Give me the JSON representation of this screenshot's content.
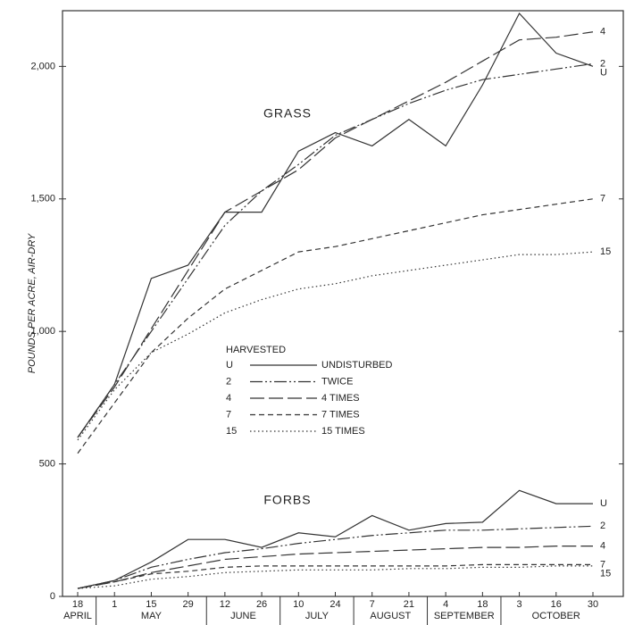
{
  "chart_data": {
    "type": "line",
    "y_label": "POUNDS PER ACRE, AIR-DRY",
    "categories": [
      "18",
      "1",
      "15",
      "29",
      "12",
      "26",
      "10",
      "24",
      "7",
      "21",
      "4",
      "18",
      "3",
      "16",
      "30"
    ],
    "months": [
      "APRIL",
      "MAY",
      "MAY",
      "MAY",
      "JUNE",
      "JUNE",
      "JULY",
      "JULY",
      "AUGUST",
      "AUGUST",
      "SEPTEMBER",
      "SEPTEMBER",
      "OCTOBER",
      "OCTOBER",
      "OCTOBER"
    ],
    "ylim": [
      0,
      2200
    ],
    "yticks": [
      0,
      500,
      {
        "value": 1000,
        "label": "1,000"
      },
      {
        "value": 1500,
        "label": "1,500"
      },
      {
        "value": 2000,
        "label": "2,000"
      }
    ],
    "color": "#333333",
    "legend": {
      "title": "HARVESTED",
      "entries": [
        {
          "code": "U",
          "name": "UNDISTURBED",
          "dash": "none"
        },
        {
          "code": "2",
          "name": "TWICE",
          "dash": "14,3,2,3,2,3"
        },
        {
          "code": "4",
          "name": "4 TIMES",
          "dash": "16,5"
        },
        {
          "code": "7",
          "name": "7 TIMES",
          "dash": "6,4"
        },
        {
          "code": "15",
          "name": "15 TIMES",
          "dash": "1.5,3"
        }
      ]
    },
    "groups": [
      {
        "label": "GRASS",
        "series": [
          {
            "code": "U",
            "values": [
              600,
              800,
              1200,
              1250,
              1450,
              1450,
              1680,
              1750,
              1700,
              1800,
              1700,
              1930,
              2200,
              2050,
              2000
            ]
          },
          {
            "code": "2",
            "values": [
              600,
              800,
              1000,
              1200,
              1400,
              1530,
              1630,
              1740,
              1800,
              1860,
              1910,
              1950,
              1970,
              1990,
              2010
            ]
          },
          {
            "code": "4",
            "values": [
              600,
              790,
              1010,
              1230,
              1450,
              1530,
              1610,
              1730,
              1800,
              1870,
              1940,
              2020,
              2100,
              2110,
              2130
            ]
          },
          {
            "code": "7",
            "values": [
              540,
              730,
              920,
              1050,
              1160,
              1230,
              1300,
              1320,
              1350,
              1380,
              1410,
              1440,
              1460,
              1480,
              1500
            ]
          },
          {
            "code": "15",
            "values": [
              590,
              780,
              920,
              990,
              1070,
              1120,
              1160,
              1180,
              1210,
              1230,
              1250,
              1270,
              1290,
              1290,
              1300
            ]
          }
        ]
      },
      {
        "label": "FORBS",
        "series": [
          {
            "code": "U",
            "values": [
              30,
              60,
              130,
              215,
              215,
              185,
              240,
              225,
              305,
              250,
              275,
              280,
              400,
              350,
              350
            ]
          },
          {
            "code": "2",
            "values": [
              30,
              60,
              110,
              140,
              165,
              180,
              200,
              215,
              230,
              240,
              250,
              250,
              255,
              260,
              265
            ]
          },
          {
            "code": "4",
            "values": [
              30,
              55,
              90,
              115,
              140,
              150,
              160,
              165,
              170,
              175,
              180,
              185,
              185,
              190,
              190
            ]
          },
          {
            "code": "7",
            "values": [
              30,
              55,
              85,
              95,
              110,
              115,
              115,
              115,
              115,
              115,
              115,
              120,
              120,
              120,
              120
            ]
          },
          {
            "code": "15",
            "values": [
              30,
              40,
              65,
              75,
              90,
              95,
              100,
              100,
              100,
              105,
              105,
              110,
              110,
              115,
              115
            ]
          }
        ]
      }
    ]
  }
}
